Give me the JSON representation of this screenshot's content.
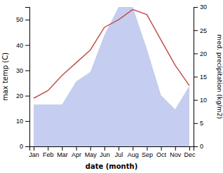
{
  "chart_data": {
    "type": "line",
    "categories": [
      "Jan",
      "Feb",
      "Mar",
      "Apr",
      "May",
      "Jun",
      "Jul",
      "Aug",
      "Sep",
      "Oct",
      "Nov",
      "Dec"
    ],
    "series": [
      {
        "type": "area",
        "axis": "y2",
        "color": "#c5cdf0",
        "values": [
          9,
          9,
          9,
          14,
          16,
          24,
          30,
          30,
          21,
          11,
          8,
          13
        ]
      },
      {
        "type": "line",
        "color": "#c0504d",
        "values": [
          19,
          22,
          28,
          33,
          38,
          47,
          50,
          54,
          52,
          42,
          32,
          24
        ]
      }
    ],
    "xlabel": "date (month)",
    "ylabel": "max temp (C)",
    "y2label": "med. precipitation (kg/m2)",
    "ylim": [
      0,
      55
    ],
    "yticks": [
      0,
      10,
      20,
      30,
      40,
      50
    ],
    "y2lim": [
      0,
      30
    ],
    "y2ticks": [
      0,
      5,
      10,
      15,
      20,
      25,
      30
    ],
    "grid": false
  }
}
